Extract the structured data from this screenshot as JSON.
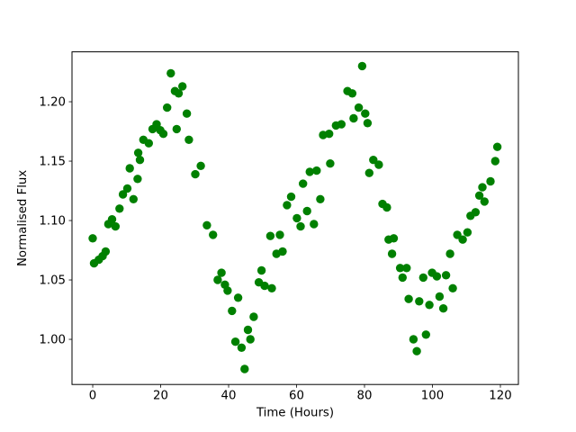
{
  "figure": {
    "background": "#ffffff"
  },
  "chart_data": {
    "type": "scatter",
    "title": "",
    "xlabel": "Time (Hours)",
    "ylabel": "Normalised Flux",
    "legend": null,
    "grid": false,
    "marker_color": "#008000",
    "marker_radius_px": 4.7,
    "axis_color": "#000000",
    "xlim": [
      -6.1,
      125.3
    ],
    "ylim": [
      0.962,
      1.242
    ],
    "xticks": [
      0,
      20,
      40,
      60,
      80,
      100,
      120
    ],
    "xtick_labels": [
      "0",
      "20",
      "40",
      "60",
      "80",
      "100",
      "120"
    ],
    "yticks": [
      1.0,
      1.05,
      1.1,
      1.15,
      1.2
    ],
    "ytick_labels": [
      "1.00",
      "1.05",
      "1.10",
      "1.15",
      "1.20"
    ],
    "points": [
      [
        0.0,
        1.085
      ],
      [
        0.4,
        1.064
      ],
      [
        1.8,
        1.067
      ],
      [
        2.9,
        1.07
      ],
      [
        3.8,
        1.074
      ],
      [
        4.6,
        1.097
      ],
      [
        5.7,
        1.101
      ],
      [
        6.7,
        1.095
      ],
      [
        7.9,
        1.11
      ],
      [
        8.9,
        1.122
      ],
      [
        10.2,
        1.127
      ],
      [
        10.9,
        1.144
      ],
      [
        12.0,
        1.118
      ],
      [
        13.2,
        1.135
      ],
      [
        13.4,
        1.157
      ],
      [
        13.9,
        1.151
      ],
      [
        14.9,
        1.168
      ],
      [
        16.5,
        1.165
      ],
      [
        17.6,
        1.177
      ],
      [
        18.8,
        1.181
      ],
      [
        19.9,
        1.176
      ],
      [
        20.8,
        1.173
      ],
      [
        21.9,
        1.195
      ],
      [
        23.0,
        1.224
      ],
      [
        24.2,
        1.209
      ],
      [
        24.7,
        1.177
      ],
      [
        25.3,
        1.207
      ],
      [
        26.4,
        1.213
      ],
      [
        27.7,
        1.19
      ],
      [
        28.3,
        1.168
      ],
      [
        30.2,
        1.139
      ],
      [
        31.8,
        1.146
      ],
      [
        33.6,
        1.096
      ],
      [
        35.4,
        1.088
      ],
      [
        36.8,
        1.05
      ],
      [
        37.9,
        1.056
      ],
      [
        38.9,
        1.046
      ],
      [
        39.7,
        1.041
      ],
      [
        41.0,
        1.024
      ],
      [
        42.0,
        0.998
      ],
      [
        42.8,
        1.035
      ],
      [
        43.8,
        0.993
      ],
      [
        44.7,
        0.975
      ],
      [
        45.7,
        1.008
      ],
      [
        46.4,
        1.0
      ],
      [
        47.4,
        1.019
      ],
      [
        48.9,
        1.048
      ],
      [
        49.7,
        1.058
      ],
      [
        50.6,
        1.045
      ],
      [
        52.3,
        1.087
      ],
      [
        52.7,
        1.043
      ],
      [
        54.1,
        1.072
      ],
      [
        55.1,
        1.088
      ],
      [
        55.9,
        1.074
      ],
      [
        57.2,
        1.113
      ],
      [
        58.4,
        1.12
      ],
      [
        60.1,
        1.102
      ],
      [
        61.2,
        1.095
      ],
      [
        61.9,
        1.131
      ],
      [
        63.1,
        1.108
      ],
      [
        63.9,
        1.141
      ],
      [
        65.1,
        1.097
      ],
      [
        65.9,
        1.142
      ],
      [
        67.0,
        1.118
      ],
      [
        67.8,
        1.172
      ],
      [
        69.6,
        1.173
      ],
      [
        69.9,
        1.148
      ],
      [
        71.6,
        1.18
      ],
      [
        73.2,
        1.181
      ],
      [
        75.0,
        1.209
      ],
      [
        76.4,
        1.207
      ],
      [
        76.8,
        1.186
      ],
      [
        78.3,
        1.195
      ],
      [
        79.3,
        1.23
      ],
      [
        80.2,
        1.19
      ],
      [
        80.9,
        1.182
      ],
      [
        81.4,
        1.14
      ],
      [
        82.6,
        1.151
      ],
      [
        84.2,
        1.147
      ],
      [
        85.3,
        1.114
      ],
      [
        86.6,
        1.111
      ],
      [
        87.1,
        1.084
      ],
      [
        88.1,
        1.072
      ],
      [
        88.6,
        1.085
      ],
      [
        90.5,
        1.06
      ],
      [
        91.2,
        1.052
      ],
      [
        92.4,
        1.06
      ],
      [
        93.0,
        1.034
      ],
      [
        94.4,
        1.0
      ],
      [
        95.4,
        0.99
      ],
      [
        96.1,
        1.032
      ],
      [
        97.3,
        1.052
      ],
      [
        98.1,
        1.004
      ],
      [
        99.1,
        1.029
      ],
      [
        99.9,
        1.056
      ],
      [
        101.3,
        1.053
      ],
      [
        102.1,
        1.036
      ],
      [
        103.2,
        1.026
      ],
      [
        104.0,
        1.054
      ],
      [
        105.2,
        1.072
      ],
      [
        106.0,
        1.043
      ],
      [
        107.3,
        1.088
      ],
      [
        108.9,
        1.084
      ],
      [
        110.3,
        1.09
      ],
      [
        111.2,
        1.104
      ],
      [
        112.7,
        1.107
      ],
      [
        113.8,
        1.121
      ],
      [
        114.7,
        1.128
      ],
      [
        115.3,
        1.116
      ],
      [
        117.1,
        1.133
      ],
      [
        118.5,
        1.15
      ],
      [
        119.1,
        1.162
      ]
    ]
  }
}
